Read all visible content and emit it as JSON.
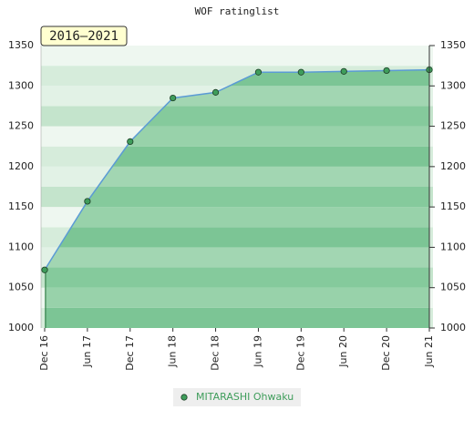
{
  "chart_data": {
    "type": "line",
    "title": "WOF ratinglist",
    "period_label": "2016–2021",
    "categories": [
      "Dec 16",
      "Jun 17",
      "Dec 17",
      "Jun 18",
      "Dec 18",
      "Jun 19",
      "Dec 19",
      "Jun 20",
      "Dec 20",
      "Jun 21"
    ],
    "series": [
      {
        "name": "MITARASHI Ohwaku",
        "color": "#5b9bd5",
        "values": [
          1072,
          1157,
          1231,
          1285,
          1292,
          1317,
          1317,
          1318,
          1319,
          1320
        ]
      }
    ],
    "ylim": [
      1000,
      1350
    ],
    "yticks": [
      1000,
      1050,
      1100,
      1150,
      1200,
      1250,
      1300,
      1350
    ],
    "y2lim": [
      1000,
      1350
    ],
    "y2ticks": [
      1000,
      1050,
      1100,
      1150,
      1200,
      1250,
      1300,
      1350
    ]
  }
}
